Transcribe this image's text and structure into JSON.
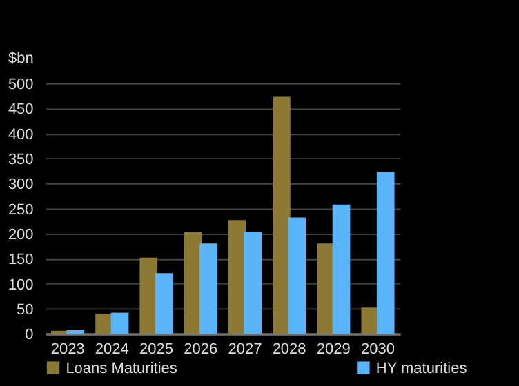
{
  "chart_data": {
    "type": "bar",
    "ylabel": "$bn",
    "categories": [
      "2023",
      "2024",
      "2025",
      "2026",
      "2027",
      "2028",
      "2029",
      "2030"
    ],
    "series": [
      {
        "name": "Loans Maturities",
        "color": "#8c7a34",
        "values": [
          6,
          40,
          152,
          203,
          227,
          473,
          180,
          52
        ]
      },
      {
        "name": "HY maturities",
        "color": "#5ab4fa",
        "values": [
          7,
          42,
          121,
          180,
          204,
          232,
          258,
          323
        ]
      }
    ],
    "ylim": [
      0,
      500
    ],
    "yticks": [
      0,
      50,
      100,
      150,
      200,
      250,
      300,
      350,
      400,
      450,
      500
    ],
    "grid": "y",
    "legend": "bottom"
  }
}
